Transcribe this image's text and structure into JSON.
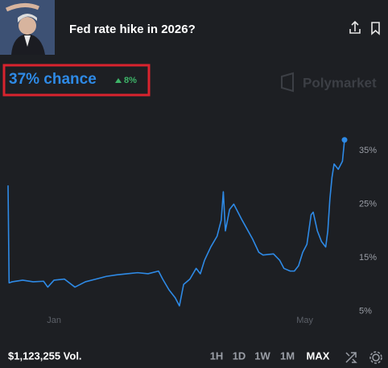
{
  "header": {
    "title": "Fed rate hike in 2026?"
  },
  "price": {
    "text": "37% chance",
    "change": "8%"
  },
  "watermark": "Polymarket",
  "footer": {
    "volume": "$1,123,255 Vol.",
    "ranges": [
      "1H",
      "1D",
      "1W",
      "1M",
      "MAX"
    ]
  },
  "chart_data": {
    "type": "line",
    "color": "#2e8ae6",
    "x": [
      -22,
      -21.5,
      -20,
      -15,
      -10,
      -5,
      -3,
      0,
      5,
      10,
      15,
      20,
      25,
      30,
      35,
      40,
      45,
      50,
      52,
      55,
      58,
      60,
      62,
      65,
      68,
      70,
      72,
      75,
      78,
      80,
      81,
      82,
      84,
      86,
      90,
      95,
      98,
      100,
      105,
      108,
      110,
      113,
      115,
      117,
      119,
      121,
      123,
      124,
      126,
      128,
      130,
      131,
      132,
      133,
      134,
      136,
      138,
      139
    ],
    "values": [
      28.5,
      10.3,
      10.5,
      10.8,
      10.5,
      10.6,
      9.5,
      10.8,
      11,
      9.5,
      10.5,
      11,
      11.5,
      11.8,
      12,
      12.2,
      12,
      12.5,
      11,
      9,
      7.5,
      6,
      10,
      11,
      13,
      12,
      14.5,
      17,
      19,
      22,
      27.3,
      20,
      24,
      25,
      22,
      18.5,
      16,
      15.5,
      15.7,
      14.5,
      13,
      12.5,
      12.5,
      13.5,
      16,
      17.5,
      23,
      23.5,
      20,
      18,
      17,
      20,
      26,
      30,
      32.5,
      31.5,
      33,
      37
    ],
    "xlim": [
      -22,
      139
    ],
    "xticks": [
      {
        "value": 0,
        "label": "Jan"
      },
      {
        "value": 120,
        "label": "May"
      }
    ],
    "ylim": [
      0,
      40
    ],
    "yticks": [
      {
        "value": 5,
        "label": "5%"
      },
      {
        "value": 15,
        "label": "15%"
      },
      {
        "value": 25,
        "label": "25%"
      },
      {
        "value": 35,
        "label": "35%"
      }
    ],
    "grid": false
  }
}
